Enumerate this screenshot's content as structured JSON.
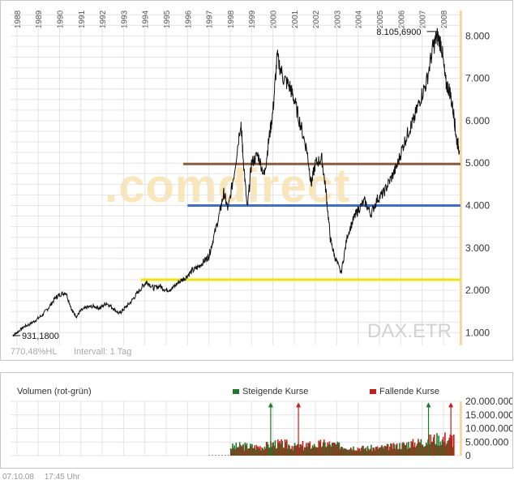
{
  "chart_data": [
    {
      "type": "line",
      "title": "DAX.ETR",
      "watermark": ".comdirect",
      "info": "770,48%HL",
      "interval": "Intervall: 1 Tag",
      "year_labels": [
        "1988",
        "1989",
        "1990",
        "1991",
        "1992",
        "1993",
        "1994",
        "1995",
        "1996",
        "1997",
        "1998",
        "1999",
        "2000",
        "2001",
        "2002",
        "2003",
        "2004",
        "2005",
        "2006",
        "2007",
        "2008"
      ],
      "y_ticks": [
        1000,
        2000,
        3000,
        4000,
        5000,
        6000,
        7000,
        8000
      ],
      "y_tick_labels": [
        "1.000",
        "2.000",
        "3.000",
        "4.000",
        "5.000",
        "6.000",
        "7.000",
        "8.000"
      ],
      "ylim": [
        700,
        8600
      ],
      "xlim": [
        1987.7,
        2008.8
      ],
      "series": [
        {
          "x": [
            1987.8,
            1988.0,
            1988.3,
            1988.6,
            1988.9,
            1989.2,
            1989.5,
            1989.8,
            1990.0,
            1990.3,
            1990.6,
            1990.8,
            1991.0,
            1991.3,
            1991.6,
            1991.9,
            1992.2,
            1992.5,
            1992.8,
            1993.0,
            1993.3,
            1993.6,
            1993.9,
            1994.1,
            1994.4,
            1994.7,
            1995.0,
            1995.3,
            1995.6,
            1995.9,
            1996.2,
            1996.5,
            1996.8,
            1997.0,
            1997.2,
            1997.5,
            1997.7,
            1997.9,
            1998.2,
            1998.5,
            1998.6,
            1998.8,
            1999.0,
            1999.3,
            1999.6,
            1999.8,
            2000.0,
            2000.2,
            2000.5,
            2000.8,
            2001.0,
            2001.3,
            2001.6,
            2001.8,
            2002.0,
            2002.3,
            2002.5,
            2002.7,
            2002.9,
            2003.2,
            2003.5,
            2003.8,
            2004.0,
            2004.3,
            2004.6,
            2004.9,
            2005.2,
            2005.5,
            2005.8,
            2006.1,
            2006.4,
            2006.6,
            2006.9,
            2007.2,
            2007.5,
            2007.7,
            2007.9,
            2008.1,
            2008.3,
            2008.5,
            2008.6,
            2008.75
          ],
          "y": [
            931,
            1000,
            1130,
            1200,
            1300,
            1420,
            1600,
            1820,
            1900,
            1950,
            1500,
            1380,
            1520,
            1600,
            1620,
            1580,
            1700,
            1580,
            1450,
            1550,
            1700,
            1900,
            2100,
            2200,
            2050,
            2100,
            2000,
            2050,
            2200,
            2300,
            2450,
            2550,
            2700,
            2800,
            3200,
            3800,
            4300,
            3900,
            4800,
            6000,
            5200,
            3900,
            5000,
            5200,
            4700,
            5500,
            6200,
            7500,
            7000,
            6800,
            6500,
            5900,
            5300,
            4500,
            5000,
            5100,
            4300,
            3200,
            2800,
            2400,
            3300,
            3700,
            3900,
            4100,
            3800,
            4150,
            4300,
            4600,
            4900,
            5400,
            5800,
            6000,
            6500,
            6900,
            7700,
            8000,
            7800,
            6900,
            6700,
            6100,
            5600,
            5300
          ]
        }
      ],
      "annotations": [
        {
          "text": "931,1800",
          "x": 1987.85,
          "y": 931
        },
        {
          "text": "8.105,6900",
          "x": 2007.6,
          "y": 8105
        }
      ],
      "levels": [
        {
          "y": 2250,
          "x_from": 1993.8,
          "x_to": 2008.8,
          "color": "#f0e400"
        },
        {
          "y": 4000,
          "x_from": 1996.0,
          "x_to": 2008.8,
          "color": "#3c6fd6"
        },
        {
          "y": 4980,
          "x_from": 1995.8,
          "x_to": 2008.8,
          "color": "#8c5a3c"
        }
      ],
      "grid": true
    },
    {
      "type": "bar",
      "title": "Volumen (rot-grün)",
      "legend": [
        {
          "label": "Steigende Kurse",
          "color": "#1a7a2a"
        },
        {
          "label": "Fallende Kurse",
          "color": "#cc1a1a"
        }
      ],
      "y_tick_labels": [
        "20.000.000",
        "15.000.000",
        "10.000.000",
        "5.000.000",
        "0"
      ],
      "y_ticks": [
        20000000,
        15000000,
        10000000,
        5000000,
        0
      ],
      "ylim": [
        0,
        20000000
      ],
      "xlim": [
        1987.7,
        2008.8
      ],
      "volume_series": {
        "x": [
          1998.0,
          1998.5,
          1999.0,
          1999.5,
          2000.0,
          2000.5,
          2001.0,
          2001.5,
          2002.0,
          2002.5,
          2003.0,
          2003.5,
          2004.0,
          2004.5,
          2005.0,
          2005.5,
          2006.0,
          2006.5,
          2007.0,
          2007.5,
          2008.0,
          2008.5
        ],
        "up": [
          3000000,
          3500000,
          3200000,
          3000000,
          4500000,
          3500000,
          3200000,
          3000000,
          3500000,
          4000000,
          3500000,
          3000000,
          2800000,
          2600000,
          2800000,
          3200000,
          3800000,
          4500000,
          5000000,
          6000000,
          5500000,
          5000000
        ],
        "down": [
          2800000,
          3200000,
          3000000,
          3200000,
          4000000,
          4200000,
          3500000,
          3800000,
          4000000,
          4200000,
          3800000,
          3200000,
          2700000,
          2500000,
          2600000,
          3000000,
          3500000,
          4200000,
          4800000,
          5800000,
          6200000,
          6500000
        ],
        "spikes": [
          {
            "x": 1999.9,
            "y": 19000000,
            "color": "#1a7a2a"
          },
          {
            "x": 2001.2,
            "y": 19000000,
            "color": "#cc1a1a"
          },
          {
            "x": 2007.3,
            "y": 19000000,
            "color": "#1a7a2a"
          },
          {
            "x": 2008.35,
            "y": 19000000,
            "color": "#cc1a1a"
          }
        ]
      }
    }
  ],
  "footer": {
    "date": "07.10.08",
    "time": "17:45 Uhr"
  },
  "colors": {
    "price_line": "#111111",
    "grid": "#e4e4e4",
    "current_marker": "#f5d9a0",
    "up": "#1a7a2a",
    "down": "#cc1a1a"
  }
}
